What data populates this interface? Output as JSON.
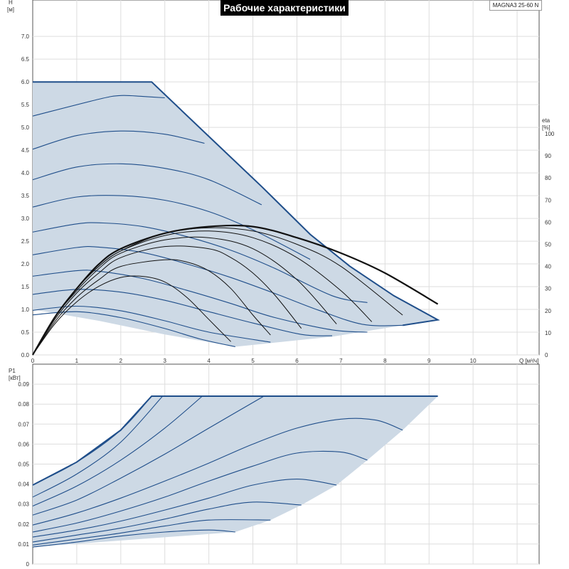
{
  "header": {
    "title": "Рабочие характеристики",
    "model": "MAGNA3 25-60 N"
  },
  "chart_data": [
    {
      "type": "line",
      "title": "Рабочие характеристики",
      "xlabel": "Q [м³/ч]",
      "ylabel": "H [м]",
      "y2label": "eta [%]",
      "xlim": [
        0,
        11.5
      ],
      "ylim": [
        0,
        7.8
      ],
      "y2lim": [
        0,
        100
      ],
      "x_ticks": [
        0,
        1,
        2,
        3,
        4,
        5,
        6,
        7,
        8,
        9,
        10
      ],
      "y_ticks": [
        "0.0",
        "0.5",
        "1.0",
        "1.5",
        "2.0",
        "2.5",
        "3.0",
        "3.5",
        "4.0",
        "4.5",
        "5.0",
        "5.5",
        "6.0",
        "6.5",
        "7.0"
      ],
      "y2_ticks": [
        "0",
        "10",
        "20",
        "30",
        "40",
        "50",
        "60",
        "70",
        "80",
        "90",
        "100"
      ],
      "grid": true,
      "fill_color": "#cdd9e5",
      "curve_color": "#1f4e8a",
      "eta_color": "#111111",
      "envelope": [
        [
          0,
          6.0
        ],
        [
          2.7,
          6.0
        ],
        [
          4.0,
          4.8
        ],
        [
          5.2,
          3.7
        ],
        [
          6.3,
          2.65
        ],
        [
          7.2,
          1.95
        ],
        [
          8.2,
          1.3
        ],
        [
          9.2,
          0.77
        ],
        [
          8.4,
          0.65
        ],
        [
          6.8,
          0.4
        ],
        [
          4.6,
          0.18
        ],
        [
          3.0,
          0.45
        ],
        [
          1.5,
          0.75
        ],
        [
          0,
          1.0
        ]
      ],
      "head_curves": [
        {
          "q": [
            0,
            1.5,
            2.0,
            2.5,
            3.0
          ],
          "h": [
            5.25,
            5.62,
            5.7,
            5.68,
            5.65
          ]
        },
        {
          "q": [
            0,
            1.0,
            2.0,
            3.0,
            3.9
          ],
          "h": [
            4.52,
            4.82,
            4.92,
            4.85,
            4.65
          ]
        },
        {
          "q": [
            0,
            1.0,
            2.0,
            3.0,
            4.0,
            5.2
          ],
          "h": [
            3.85,
            4.13,
            4.2,
            4.1,
            3.85,
            3.3
          ]
        },
        {
          "q": [
            0,
            1.0,
            2.0,
            3.0,
            4.0,
            5.0,
            6.3
          ],
          "h": [
            3.25,
            3.47,
            3.5,
            3.4,
            3.15,
            2.75,
            2.1
          ]
        },
        {
          "q": [
            0,
            1.0,
            1.6,
            2.5,
            3.5,
            4.5,
            5.5,
            6.8,
            7.6
          ],
          "h": [
            2.7,
            2.88,
            2.9,
            2.82,
            2.6,
            2.3,
            1.9,
            1.3,
            1.15
          ]
        },
        {
          "q": [
            0,
            1.0,
            1.5,
            2.5,
            3.5,
            4.5,
            5.5,
            6.5,
            7.5,
            8.4
          ],
          "h": [
            2.2,
            2.36,
            2.37,
            2.25,
            2.0,
            1.7,
            1.35,
            0.98,
            0.67,
            0.65
          ]
        },
        {
          "q": [
            0,
            1.0,
            1.5,
            2.5,
            3.5,
            4.5,
            5.5,
            6.8,
            7.6
          ],
          "h": [
            1.73,
            1.85,
            1.84,
            1.68,
            1.42,
            1.13,
            0.82,
            0.55,
            0.5
          ]
        },
        {
          "q": [
            0,
            1.0,
            2.0,
            3.0,
            4.0,
            5.0,
            6.1,
            6.8
          ],
          "h": [
            1.33,
            1.44,
            1.38,
            1.2,
            0.95,
            0.7,
            0.45,
            0.42
          ]
        },
        {
          "q": [
            0,
            1.0,
            2.0,
            3.0,
            4.0,
            5.4
          ],
          "h": [
            0.98,
            1.07,
            0.97,
            0.75,
            0.5,
            0.28
          ]
        },
        {
          "q": [
            0,
            1.0,
            2.0,
            3.0,
            3.8,
            4.6
          ],
          "h": [
            0.88,
            0.95,
            0.82,
            0.58,
            0.35,
            0.18
          ]
        }
      ],
      "eta_curves": [
        {
          "q": [
            0,
            0.5,
            1.0,
            1.5,
            2.0,
            2.5,
            3.0,
            3.5,
            4.0,
            4.5
          ],
          "eta": [
            0,
            14,
            24,
            31,
            35,
            35.5,
            33,
            26,
            16,
            6
          ]
        },
        {
          "q": [
            0,
            0.5,
            1.0,
            1.5,
            2.0,
            3.0,
            3.5,
            4.0,
            4.5,
            5.0,
            5.4
          ],
          "eta": [
            0,
            15,
            26,
            34,
            40,
            43,
            42,
            38,
            30,
            18,
            9
          ]
        },
        {
          "q": [
            0,
            0.5,
            1.0,
            1.5,
            2.0,
            3.0,
            4.0,
            4.5,
            5.0,
            5.5,
            6.1
          ],
          "eta": [
            0,
            16,
            28,
            37,
            44,
            49,
            48,
            44,
            37,
            27,
            12
          ]
        },
        {
          "q": [
            0,
            0.5,
            1.0,
            1.5,
            2.0,
            3.0,
            4.0,
            5.0,
            6.0,
            6.9
          ],
          "eta": [
            0,
            17,
            29,
            39,
            46,
            52,
            53,
            48,
            34,
            14
          ]
        },
        {
          "q": [
            0,
            0.5,
            1.0,
            1.5,
            2.0,
            3.0,
            4.0,
            5.0,
            6.0,
            7.0,
            7.7
          ],
          "eta": [
            0,
            17,
            30,
            40,
            47,
            54,
            56,
            53,
            44,
            29,
            15
          ]
        },
        {
          "q": [
            0,
            0.5,
            1.0,
            1.5,
            2.0,
            3.0,
            4.0,
            5.0,
            6.0,
            7.0,
            8.4
          ],
          "eta": [
            0,
            17,
            30,
            40,
            47,
            55,
            57.5,
            56,
            50,
            40,
            18
          ]
        },
        {
          "q": [
            0,
            0.5,
            1.0,
            1.5,
            2.0,
            3.0,
            4.0,
            5.0,
            6.0,
            7.0,
            8.0,
            9.2
          ],
          "eta": [
            0,
            17,
            30,
            41,
            48,
            55,
            58,
            58,
            53,
            46,
            37,
            23
          ]
        }
      ]
    },
    {
      "type": "line",
      "xlabel": "",
      "ylabel": "P1 [кВт]",
      "xlim": [
        0,
        11.5
      ],
      "ylim": [
        0,
        0.1
      ],
      "y_ticks": [
        "0",
        "0.01",
        "0.02",
        "0.03",
        "0.04",
        "0.05",
        "0.06",
        "0.07",
        "0.08",
        "0.09"
      ],
      "grid": true,
      "fill_color": "#cdd9e5",
      "curve_color": "#1f4e8a",
      "envelope": [
        [
          0,
          0.0395
        ],
        [
          1.0,
          0.051
        ],
        [
          2.0,
          0.067
        ],
        [
          2.7,
          0.084
        ],
        [
          9.2,
          0.084
        ],
        [
          8.4,
          0.067
        ],
        [
          7.6,
          0.052
        ],
        [
          6.9,
          0.0395
        ],
        [
          6.1,
          0.0295
        ],
        [
          5.4,
          0.022
        ],
        [
          4.6,
          0.016
        ],
        [
          0,
          0.0085
        ]
      ],
      "power_curves": [
        {
          "q": [
            0,
            1.0,
            2.0,
            2.7
          ],
          "p": [
            0.0395,
            0.051,
            0.067,
            0.084
          ]
        },
        {
          "q": [
            0,
            1.0,
            2.0,
            2.95
          ],
          "p": [
            0.0335,
            0.045,
            0.061,
            0.084
          ]
        },
        {
          "q": [
            0,
            1.0,
            2.0,
            3.0,
            3.85
          ],
          "p": [
            0.029,
            0.039,
            0.052,
            0.068,
            0.084
          ]
        },
        {
          "q": [
            0,
            1.0,
            2.0,
            3.0,
            4.0,
            5.25
          ],
          "p": [
            0.0245,
            0.032,
            0.043,
            0.055,
            0.068,
            0.084
          ]
        },
        {
          "q": [
            0,
            1.0,
            2.0,
            3.0,
            4.0,
            5.0,
            6.0,
            7.0,
            7.8,
            8.4
          ],
          "p": [
            0.0195,
            0.0255,
            0.033,
            0.0415,
            0.0505,
            0.06,
            0.068,
            0.0725,
            0.072,
            0.067
          ]
        },
        {
          "q": [
            0,
            1.0,
            2.0,
            3.0,
            4.0,
            5.0,
            6.0,
            7.0,
            7.6
          ],
          "p": [
            0.016,
            0.0205,
            0.0265,
            0.0335,
            0.0415,
            0.049,
            0.0555,
            0.056,
            0.052
          ]
        },
        {
          "q": [
            0,
            1.0,
            2.0,
            3.0,
            4.0,
            5.0,
            6.0,
            6.9
          ],
          "p": [
            0.0135,
            0.017,
            0.0215,
            0.027,
            0.033,
            0.0395,
            0.0425,
            0.0395
          ]
        },
        {
          "q": [
            0,
            1.0,
            2.0,
            3.0,
            4.0,
            5.0,
            6.1
          ],
          "p": [
            0.011,
            0.0145,
            0.018,
            0.0225,
            0.0275,
            0.031,
            0.0295
          ]
        },
        {
          "q": [
            0,
            1.0,
            2.0,
            3.0,
            4.0,
            5.4
          ],
          "p": [
            0.0095,
            0.0125,
            0.0155,
            0.019,
            0.022,
            0.022
          ]
        },
        {
          "q": [
            0,
            1.0,
            2.0,
            3.0,
            4.0,
            4.6
          ],
          "p": [
            0.0085,
            0.011,
            0.014,
            0.016,
            0.017,
            0.016
          ]
        }
      ]
    }
  ]
}
